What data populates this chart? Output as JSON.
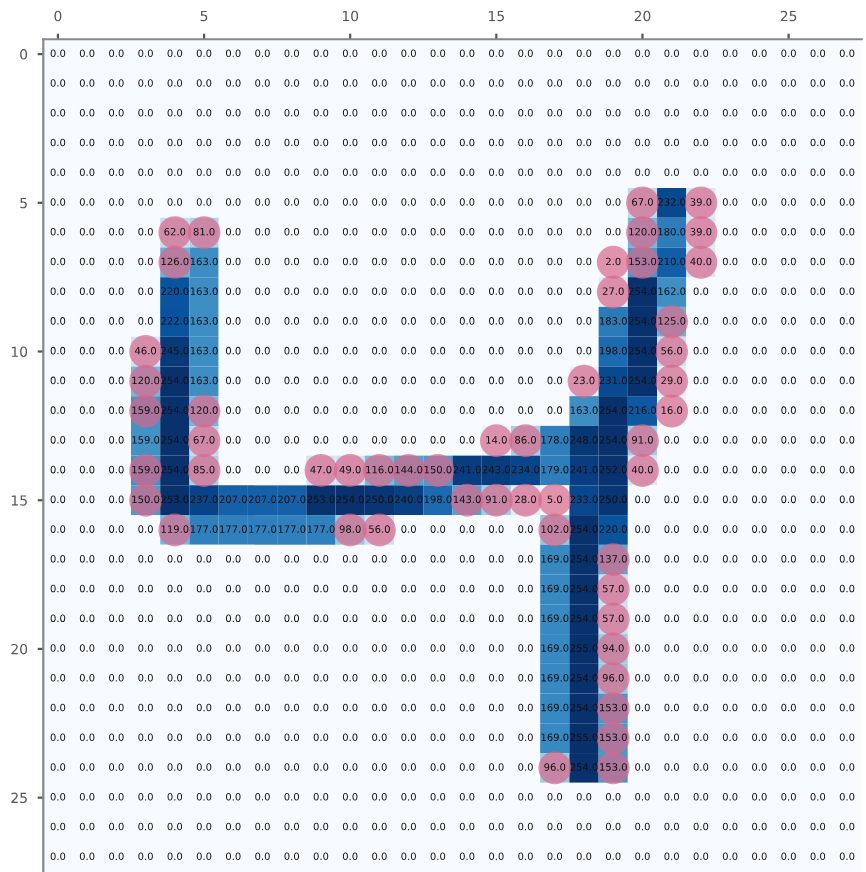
{
  "chart_data": {
    "type": "heatmap",
    "x": [
      0,
      1,
      2,
      3,
      4,
      5,
      6,
      7,
      8,
      9,
      10,
      11,
      12,
      13,
      14,
      15,
      16,
      17,
      18,
      19,
      20,
      21,
      22,
      23,
      24,
      25,
      26,
      27
    ],
    "xlim": [
      -0.5,
      27.5
    ],
    "xticks": [
      0,
      5,
      10,
      15,
      20,
      25
    ],
    "ylim": [
      27.5,
      -0.5
    ],
    "yticks": [
      0,
      5,
      10,
      15,
      20,
      25
    ],
    "cells": [
      [
        0,
        0,
        0,
        0,
        0,
        0,
        0,
        0,
        0,
        0,
        0,
        0,
        0,
        0,
        0,
        0,
        0,
        0,
        0,
        0,
        0,
        0,
        0,
        0,
        0,
        0,
        0,
        0
      ],
      [
        0,
        0,
        0,
        0,
        0,
        0,
        0,
        0,
        0,
        0,
        0,
        0,
        0,
        0,
        0,
        0,
        0,
        0,
        0,
        0,
        0,
        0,
        0,
        0,
        0,
        0,
        0,
        0
      ],
      [
        0,
        0,
        0,
        0,
        0,
        0,
        0,
        0,
        0,
        0,
        0,
        0,
        0,
        0,
        0,
        0,
        0,
        0,
        0,
        0,
        0,
        0,
        0,
        0,
        0,
        0,
        0,
        0
      ],
      [
        0,
        0,
        0,
        0,
        0,
        0,
        0,
        0,
        0,
        0,
        0,
        0,
        0,
        0,
        0,
        0,
        0,
        0,
        0,
        0,
        0,
        0,
        0,
        0,
        0,
        0,
        0,
        0
      ],
      [
        0,
        0,
        0,
        0,
        0,
        0,
        0,
        0,
        0,
        0,
        0,
        0,
        0,
        0,
        0,
        0,
        0,
        0,
        0,
        0,
        0,
        0,
        0,
        0,
        0,
        0,
        0,
        0
      ],
      [
        0,
        0,
        0,
        0,
        0,
        0,
        0,
        0,
        0,
        0,
        0,
        0,
        0,
        0,
        0,
        0,
        0,
        0,
        0,
        0,
        67,
        232,
        39,
        0,
        0,
        0,
        0,
        0
      ],
      [
        0,
        0,
        0,
        0,
        62,
        81,
        0,
        0,
        0,
        0,
        0,
        0,
        0,
        0,
        0,
        0,
        0,
        0,
        0,
        0,
        120,
        180,
        39,
        0,
        0,
        0,
        0,
        0
      ],
      [
        0,
        0,
        0,
        0,
        126,
        163,
        0,
        0,
        0,
        0,
        0,
        0,
        0,
        0,
        0,
        0,
        0,
        0,
        0,
        2,
        153,
        210,
        40,
        0,
        0,
        0,
        0,
        0
      ],
      [
        0,
        0,
        0,
        0,
        220,
        163,
        0,
        0,
        0,
        0,
        0,
        0,
        0,
        0,
        0,
        0,
        0,
        0,
        0,
        27,
        254,
        162,
        0,
        0,
        0,
        0,
        0,
        0
      ],
      [
        0,
        0,
        0,
        0,
        222,
        163,
        0,
        0,
        0,
        0,
        0,
        0,
        0,
        0,
        0,
        0,
        0,
        0,
        0,
        183,
        254,
        125,
        0,
        0,
        0,
        0,
        0,
        0
      ],
      [
        0,
        0,
        0,
        46,
        245,
        163,
        0,
        0,
        0,
        0,
        0,
        0,
        0,
        0,
        0,
        0,
        0,
        0,
        0,
        198,
        254,
        56,
        0,
        0,
        0,
        0,
        0,
        0
      ],
      [
        0,
        0,
        0,
        120,
        254,
        163,
        0,
        0,
        0,
        0,
        0,
        0,
        0,
        0,
        0,
        0,
        0,
        0,
        23,
        231,
        254,
        29,
        0,
        0,
        0,
        0,
        0,
        0
      ],
      [
        0,
        0,
        0,
        159,
        254,
        120,
        0,
        0,
        0,
        0,
        0,
        0,
        0,
        0,
        0,
        0,
        0,
        0,
        163,
        254,
        216,
        16,
        0,
        0,
        0,
        0,
        0,
        0
      ],
      [
        0,
        0,
        0,
        159,
        254,
        67,
        0,
        0,
        0,
        0,
        0,
        0,
        0,
        0,
        0,
        14,
        86,
        178,
        248,
        254,
        91,
        0,
        0,
        0,
        0,
        0,
        0,
        0
      ],
      [
        0,
        0,
        0,
        159,
        254,
        85,
        0,
        0,
        0,
        47,
        49,
        116,
        144,
        150,
        241,
        243,
        234,
        179,
        241,
        252,
        40,
        0,
        0,
        0,
        0,
        0,
        0,
        0
      ],
      [
        0,
        0,
        0,
        150,
        253,
        237,
        207,
        207,
        207,
        253,
        254,
        250,
        240,
        198,
        143,
        91,
        28,
        5,
        233,
        250,
        0,
        0,
        0,
        0,
        0,
        0,
        0,
        0
      ],
      [
        0,
        0,
        0,
        0,
        119,
        177,
        177,
        177,
        177,
        177,
        98,
        56,
        0,
        0,
        0,
        0,
        0,
        102,
        254,
        220,
        0,
        0,
        0,
        0,
        0,
        0,
        0,
        0
      ],
      [
        0,
        0,
        0,
        0,
        0,
        0,
        0,
        0,
        0,
        0,
        0,
        0,
        0,
        0,
        0,
        0,
        0,
        169,
        254,
        137,
        0,
        0,
        0,
        0,
        0,
        0,
        0,
        0
      ],
      [
        0,
        0,
        0,
        0,
        0,
        0,
        0,
        0,
        0,
        0,
        0,
        0,
        0,
        0,
        0,
        0,
        0,
        169,
        254,
        57,
        0,
        0,
        0,
        0,
        0,
        0,
        0,
        0
      ],
      [
        0,
        0,
        0,
        0,
        0,
        0,
        0,
        0,
        0,
        0,
        0,
        0,
        0,
        0,
        0,
        0,
        0,
        169,
        254,
        57,
        0,
        0,
        0,
        0,
        0,
        0,
        0,
        0
      ],
      [
        0,
        0,
        0,
        0,
        0,
        0,
        0,
        0,
        0,
        0,
        0,
        0,
        0,
        0,
        0,
        0,
        0,
        169,
        255,
        94,
        0,
        0,
        0,
        0,
        0,
        0,
        0,
        0
      ],
      [
        0,
        0,
        0,
        0,
        0,
        0,
        0,
        0,
        0,
        0,
        0,
        0,
        0,
        0,
        0,
        0,
        0,
        169,
        254,
        96,
        0,
        0,
        0,
        0,
        0,
        0,
        0,
        0
      ],
      [
        0,
        0,
        0,
        0,
        0,
        0,
        0,
        0,
        0,
        0,
        0,
        0,
        0,
        0,
        0,
        0,
        0,
        169,
        254,
        153,
        0,
        0,
        0,
        0,
        0,
        0,
        0,
        0
      ],
      [
        0,
        0,
        0,
        0,
        0,
        0,
        0,
        0,
        0,
        0,
        0,
        0,
        0,
        0,
        0,
        0,
        0,
        169,
        255,
        153,
        0,
        0,
        0,
        0,
        0,
        0,
        0,
        0
      ],
      [
        0,
        0,
        0,
        0,
        0,
        0,
        0,
        0,
        0,
        0,
        0,
        0,
        0,
        0,
        0,
        0,
        0,
        96,
        254,
        153,
        0,
        0,
        0,
        0,
        0,
        0,
        0,
        0
      ],
      [
        0,
        0,
        0,
        0,
        0,
        0,
        0,
        0,
        0,
        0,
        0,
        0,
        0,
        0,
        0,
        0,
        0,
        0,
        0,
        0,
        0,
        0,
        0,
        0,
        0,
        0,
        0,
        0
      ],
      [
        0,
        0,
        0,
        0,
        0,
        0,
        0,
        0,
        0,
        0,
        0,
        0,
        0,
        0,
        0,
        0,
        0,
        0,
        0,
        0,
        0,
        0,
        0,
        0,
        0,
        0,
        0,
        0
      ],
      [
        0,
        0,
        0,
        0,
        0,
        0,
        0,
        0,
        0,
        0,
        0,
        0,
        0,
        0,
        0,
        0,
        0,
        0,
        0,
        0,
        0,
        0,
        0,
        0,
        0,
        0,
        0,
        0
      ]
    ],
    "cell_labels": [
      [
        "0.0",
        "0.0",
        "0.0",
        "0.0",
        "0.0",
        "0.0",
        "0.0",
        "0.0",
        "0.0",
        "0.0",
        "0.0",
        "0.0",
        "0.0",
        "0.0",
        "0.0",
        "0.0",
        "0.0",
        "0.0",
        "0.0",
        "0.0",
        "0.0",
        "0.0",
        "0.0",
        "0.0",
        "0.0",
        "0.0",
        "0.0",
        "0.0"
      ],
      [
        "0.0",
        "0.0",
        "0.0",
        "0.0",
        "0.0",
        "0.0",
        "0.0",
        "0.0",
        "0.0",
        "0.0",
        "0.0",
        "0.0",
        "0.0",
        "0.0",
        "0.0",
        "0.0",
        "0.0",
        "0.0",
        "0.0",
        "0.0",
        "0.0",
        "0.0",
        "0.0",
        "0.0",
        "0.0",
        "0.0",
        "0.0",
        "0.0"
      ],
      [
        "0.0",
        "0.0",
        "0.0",
        "0.0",
        "0.0",
        "0.0",
        "0.0",
        "0.0",
        "0.0",
        "0.0",
        "0.0",
        "0.0",
        "0.0",
        "0.0",
        "0.0",
        "0.0",
        "0.0",
        "0.0",
        "0.0",
        "0.0",
        "0.0",
        "0.0",
        "0.0",
        "0.0",
        "0.0",
        "0.0",
        "0.0",
        "0.0"
      ],
      [
        "0.0",
        "0.0",
        "0.0",
        "0.0",
        "0.0",
        "0.0",
        "0.0",
        "0.0",
        "0.0",
        "0.0",
        "0.0",
        "0.0",
        "0.0",
        "0.0",
        "0.0",
        "0.0",
        "0.0",
        "0.0",
        "0.0",
        "0.0",
        "0.0",
        "0.0",
        "0.0",
        "0.0",
        "0.0",
        "0.0",
        "0.0",
        "0.0"
      ],
      [
        "0.0",
        "0.0",
        "0.0",
        "0.0",
        "0.0",
        "0.0",
        "0.0",
        "0.0",
        "0.0",
        "0.0",
        "0.0",
        "0.0",
        "0.0",
        "0.0",
        "0.0",
        "0.0",
        "0.0",
        "0.0",
        "0.0",
        "0.0",
        "0.0",
        "0.0",
        "0.0",
        "0.0",
        "0.0",
        "0.0",
        "0.0",
        "0.0"
      ],
      [
        "0.0",
        "0.0",
        "0.0",
        "0.0",
        "0.0",
        "0.0",
        "0.0",
        "0.0",
        "0.0",
        "0.0",
        "0.0",
        "0.0",
        "0.0",
        "0.0",
        "0.0",
        "0.0",
        "0.0",
        "0.0",
        "0.0",
        "0.0",
        "67.0",
        "232.0",
        "39.0",
        "0.0",
        "0.0",
        "0.0",
        "0.0",
        "0.0"
      ],
      [
        "0.0",
        "0.0",
        "0.0",
        "0.0",
        "62.0",
        "81.0",
        "0.0",
        "0.0",
        "0.0",
        "0.0",
        "0.0",
        "0.0",
        "0.0",
        "0.0",
        "0.0",
        "0.0",
        "0.0",
        "0.0",
        "0.0",
        "0.0",
        "120.0",
        "180.0",
        "39.0",
        "0.0",
        "0.0",
        "0.0",
        "0.0",
        "0.0"
      ],
      [
        "0.0",
        "0.0",
        "0.0",
        "0.0",
        "126.0",
        "163.0",
        "0.0",
        "0.0",
        "0.0",
        "0.0",
        "0.0",
        "0.0",
        "0.0",
        "0.0",
        "0.0",
        "0.0",
        "0.0",
        "0.0",
        "0.0",
        "2.0",
        "153.0",
        "210.0",
        "40.0",
        "0.0",
        "0.0",
        "0.0",
        "0.0",
        "0.0"
      ],
      [
        "0.0",
        "0.0",
        "0.0",
        "0.0",
        "220.0",
        "163.0",
        "0.0",
        "0.0",
        "0.0",
        "0.0",
        "0.0",
        "0.0",
        "0.0",
        "0.0",
        "0.0",
        "0.0",
        "0.0",
        "0.0",
        "0.0",
        "27.0",
        "254.0",
        "162.0",
        "0.0",
        "0.0",
        "0.0",
        "0.0",
        "0.0",
        "0.0"
      ],
      [
        "0.0",
        "0.0",
        "0.0",
        "0.0",
        "222.0",
        "163.0",
        "0.0",
        "0.0",
        "0.0",
        "0.0",
        "0.0",
        "0.0",
        "0.0",
        "0.0",
        "0.0",
        "0.0",
        "0.0",
        "0.0",
        "0.0",
        "183.0",
        "254.0",
        "125.0",
        "0.0",
        "0.0",
        "0.0",
        "0.0",
        "0.0",
        "0.0"
      ],
      [
        "0.0",
        "0.0",
        "0.0",
        "46.0",
        "245.0",
        "163.0",
        "0.0",
        "0.0",
        "0.0",
        "0.0",
        "0.0",
        "0.0",
        "0.0",
        "0.0",
        "0.0",
        "0.0",
        "0.0",
        "0.0",
        "0.0",
        "198.0",
        "254.0",
        "56.0",
        "0.0",
        "0.0",
        "0.0",
        "0.0",
        "0.0",
        "0.0"
      ],
      [
        "0.0",
        "0.0",
        "0.0",
        "120.0",
        "254.0",
        "163.0",
        "0.0",
        "0.0",
        "0.0",
        "0.0",
        "0.0",
        "0.0",
        "0.0",
        "0.0",
        "0.0",
        "0.0",
        "0.0",
        "0.0",
        "23.0",
        "231.0",
        "254.0",
        "29.0",
        "0.0",
        "0.0",
        "0.0",
        "0.0",
        "0.0",
        "0.0"
      ],
      [
        "0.0",
        "0.0",
        "0.0",
        "159.0",
        "254.0",
        "120.0",
        "0.0",
        "0.0",
        "0.0",
        "0.0",
        "0.0",
        "0.0",
        "0.0",
        "0.0",
        "0.0",
        "0.0",
        "0.0",
        "0.0",
        "163.0",
        "254.0",
        "216.0",
        "16.0",
        "0.0",
        "0.0",
        "0.0",
        "0.0",
        "0.0",
        "0.0"
      ],
      [
        "0.0",
        "0.0",
        "0.0",
        "159.0",
        "254.0",
        "67.0",
        "0.0",
        "0.0",
        "0.0",
        "0.0",
        "0.0",
        "0.0",
        "0.0",
        "0.0",
        "0.0",
        "14.0",
        "86.0",
        "178.0",
        "248.0",
        "254.0",
        "91.0",
        "0.0",
        "0.0",
        "0.0",
        "0.0",
        "0.0",
        "0.0",
        "0.0"
      ],
      [
        "0.0",
        "0.0",
        "0.0",
        "159.0",
        "254.0",
        "85.0",
        "0.0",
        "0.0",
        "0.0",
        "47.0",
        "49.0",
        "116.0",
        "144.0",
        "150.0",
        "241.0",
        "243.0",
        "234.0",
        "179.0",
        "241.0",
        "252.0",
        "40.0",
        "0.0",
        "0.0",
        "0.0",
        "0.0",
        "0.0",
        "0.0",
        "0.0"
      ],
      [
        "0.0",
        "0.0",
        "0.0",
        "150.0",
        "253.0",
        "237.0",
        "207.0",
        "207.0",
        "207.0",
        "253.0",
        "254.0",
        "250.0",
        "240.0",
        "198.0",
        "143.0",
        "91.0",
        "28.0",
        "5.0",
        "233.0",
        "250.0",
        "0.0",
        "0.0",
        "0.0",
        "0.0",
        "0.0",
        "0.0",
        "0.0",
        "0.0"
      ],
      [
        "0.0",
        "0.0",
        "0.0",
        "0.0",
        "119.0",
        "177.0",
        "177.0",
        "177.0",
        "177.0",
        "177.0",
        "98.0",
        "56.0",
        "0.0",
        "0.0",
        "0.0",
        "0.0",
        "0.0",
        "102.0",
        "254.0",
        "220.0",
        "0.0",
        "0.0",
        "0.0",
        "0.0",
        "0.0",
        "0.0",
        "0.0",
        "0.0"
      ],
      [
        "0.0",
        "0.0",
        "0.0",
        "0.0",
        "0.0",
        "0.0",
        "0.0",
        "0.0",
        "0.0",
        "0.0",
        "0.0",
        "0.0",
        "0.0",
        "0.0",
        "0.0",
        "0.0",
        "0.0",
        "169.0",
        "254.0",
        "137.0",
        "0.0",
        "0.0",
        "0.0",
        "0.0",
        "0.0",
        "0.0",
        "0.0",
        "0.0"
      ],
      [
        "0.0",
        "0.0",
        "0.0",
        "0.0",
        "0.0",
        "0.0",
        "0.0",
        "0.0",
        "0.0",
        "0.0",
        "0.0",
        "0.0",
        "0.0",
        "0.0",
        "0.0",
        "0.0",
        "0.0",
        "169.0",
        "254.0",
        "57.0",
        "0.0",
        "0.0",
        "0.0",
        "0.0",
        "0.0",
        "0.0",
        "0.0",
        "0.0"
      ],
      [
        "0.0",
        "0.0",
        "0.0",
        "0.0",
        "0.0",
        "0.0",
        "0.0",
        "0.0",
        "0.0",
        "0.0",
        "0.0",
        "0.0",
        "0.0",
        "0.0",
        "0.0",
        "0.0",
        "0.0",
        "169.0",
        "254.0",
        "57.0",
        "0.0",
        "0.0",
        "0.0",
        "0.0",
        "0.0",
        "0.0",
        "0.0",
        "0.0"
      ],
      [
        "0.0",
        "0.0",
        "0.0",
        "0.0",
        "0.0",
        "0.0",
        "0.0",
        "0.0",
        "0.0",
        "0.0",
        "0.0",
        "0.0",
        "0.0",
        "0.0",
        "0.0",
        "0.0",
        "0.0",
        "169.0",
        "255.0",
        "94.0",
        "0.0",
        "0.0",
        "0.0",
        "0.0",
        "0.0",
        "0.0",
        "0.0",
        "0.0"
      ],
      [
        "0.0",
        "0.0",
        "0.0",
        "0.0",
        "0.0",
        "0.0",
        "0.0",
        "0.0",
        "0.0",
        "0.0",
        "0.0",
        "0.0",
        "0.0",
        "0.0",
        "0.0",
        "0.0",
        "0.0",
        "169.0",
        "254.0",
        "96.0",
        "0.0",
        "0.0",
        "0.0",
        "0.0",
        "0.0",
        "0.0",
        "0.0",
        "0.0"
      ],
      [
        "0.0",
        "0.0",
        "0.0",
        "0.0",
        "0.0",
        "0.0",
        "0.0",
        "0.0",
        "0.0",
        "0.0",
        "0.0",
        "0.0",
        "0.0",
        "0.0",
        "0.0",
        "0.0",
        "0.0",
        "169.0",
        "254.0",
        "153.0",
        "0.0",
        "0.0",
        "0.0",
        "0.0",
        "0.0",
        "0.0",
        "0.0",
        "0.0"
      ],
      [
        "0.0",
        "0.0",
        "0.0",
        "0.0",
        "0.0",
        "0.0",
        "0.0",
        "0.0",
        "0.0",
        "0.0",
        "0.0",
        "0.0",
        "0.0",
        "0.0",
        "0.0",
        "0.0",
        "0.0",
        "169.0",
        "255.0",
        "153.0",
        "0.0",
        "0.0",
        "0.0",
        "0.0",
        "0.0",
        "0.0",
        "0.0",
        "0.0"
      ],
      [
        "0.0",
        "0.0",
        "0.0",
        "0.0",
        "0.0",
        "0.0",
        "0.0",
        "0.0",
        "0.0",
        "0.0",
        "0.0",
        "0.0",
        "0.0",
        "0.0",
        "0.0",
        "0.0",
        "0.0",
        "96.0",
        "254.0",
        "153.0",
        "0.0",
        "0.0",
        "0.0",
        "0.0",
        "0.0",
        "0.0",
        "0.0",
        "0.0"
      ],
      [
        "0.0",
        "0.0",
        "0.0",
        "0.0",
        "0.0",
        "0.0",
        "0.0",
        "0.0",
        "0.0",
        "0.0",
        "0.0",
        "0.0",
        "0.0",
        "0.0",
        "0.0",
        "0.0",
        "0.0",
        "0.0",
        "0.0",
        "0.0",
        "0.0",
        "0.0",
        "0.0",
        "0.0",
        "0.0",
        "0.0",
        "0.0",
        "0.0"
      ],
      [
        "0.0",
        "0.0",
        "0.0",
        "0.0",
        "0.0",
        "0.0",
        "0.0",
        "0.0",
        "0.0",
        "0.0",
        "0.0",
        "0.0",
        "0.0",
        "0.0",
        "0.0",
        "0.0",
        "0.0",
        "0.0",
        "0.0",
        "0.0",
        "0.0",
        "0.0",
        "0.0",
        "0.0",
        "0.0",
        "0.0",
        "0.0",
        "0.0"
      ],
      [
        "0.0",
        "0.0",
        "0.0",
        "0.0",
        "0.0",
        "0.0",
        "0.0",
        "0.0",
        "0.0",
        "0.0",
        "0.0",
        "0.0",
        "0.0",
        "0.0",
        "0.0",
        "0.0",
        "0.0",
        "0.0",
        "0.0",
        "0.0",
        "0.0",
        "0.0",
        "0.0",
        "0.0",
        "0.0",
        "0.0",
        "0.0",
        "0.0"
      ]
    ],
    "grid": false,
    "series": [
      {
        "type": "scatter",
        "color": "#d9668a",
        "x": [
          20,
          22,
          4,
          5,
          20,
          22,
          4,
          19,
          20,
          22,
          19,
          21,
          3,
          21,
          3,
          18,
          21,
          3,
          5,
          21,
          5,
          15,
          16,
          20,
          3,
          5,
          9,
          10,
          11,
          12,
          13,
          20,
          3,
          14,
          15,
          16,
          17,
          4,
          10,
          11,
          17,
          19,
          19,
          19,
          19,
          19,
          19,
          19,
          17,
          19
        ],
        "values": [
          5,
          5,
          6,
          6,
          6,
          6,
          7,
          7,
          7,
          7,
          8,
          9,
          10,
          10,
          11,
          11,
          11,
          12,
          12,
          12,
          13,
          13,
          13,
          13,
          14,
          14,
          14,
          14,
          14,
          14,
          14,
          14,
          15,
          15,
          15,
          15,
          15,
          16,
          16,
          16,
          16,
          17,
          18,
          19,
          20,
          21,
          22,
          23,
          24,
          24
        ]
      }
    ]
  }
}
